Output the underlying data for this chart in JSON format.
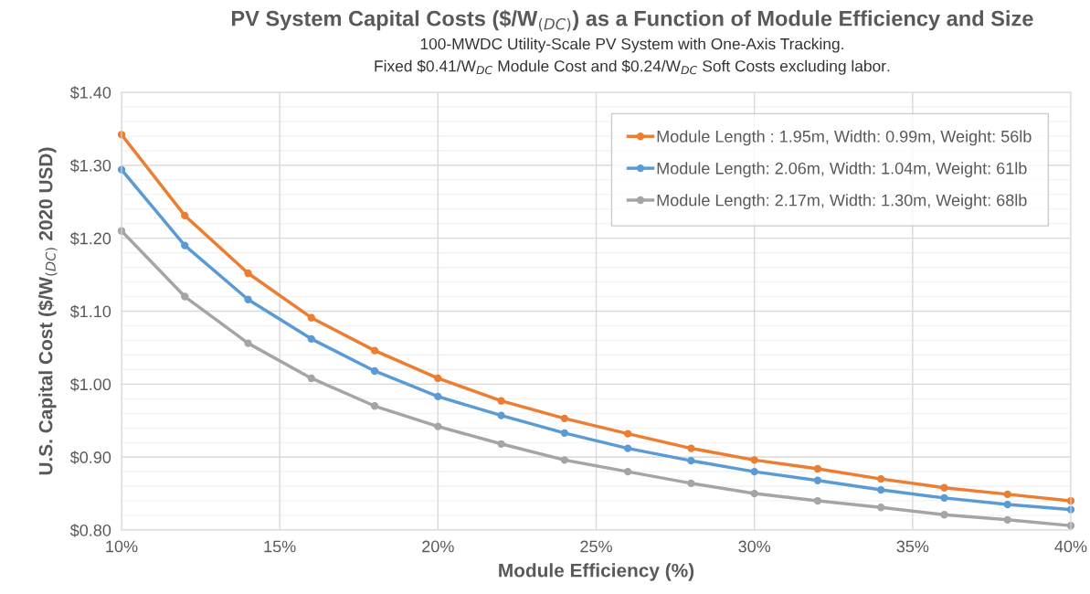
{
  "chart_data": {
    "type": "line",
    "title": "PV System Capital Costs ($/W$_{(DC)}$) as a Function of Module Efficiency and Size",
    "subtitle": "100-MWDC Utility-Scale PV System with One-Axis Tracking.\nFixed $0.41/W$_{DC}$ Module Cost and $0.24/W$_{DC}$ Soft Costs excluding labor.",
    "xlabel": "Module Efficiency (%)",
    "ylabel": "U.S. Capital Cost ($/W$_{(DC)}$ 2020 USD)",
    "x": [
      10,
      12,
      14,
      16,
      18,
      20,
      22,
      24,
      26,
      28,
      30,
      32,
      34,
      36,
      38,
      40
    ],
    "series": [
      {
        "name": "Module Length : 1.95m, Width: 0.99m, Weight: 56lb",
        "color": "#ed7d31",
        "values": [
          1.342,
          1.231,
          1.152,
          1.091,
          1.046,
          1.008,
          0.977,
          0.953,
          0.932,
          0.912,
          0.896,
          0.884,
          0.87,
          0.858,
          0.849,
          0.84
        ]
      },
      {
        "name": "Module Length: 2.06m, Width: 1.04m, Weight: 61lb",
        "color": "#5b9bd5",
        "values": [
          1.294,
          1.19,
          1.116,
          1.062,
          1.018,
          0.983,
          0.957,
          0.933,
          0.912,
          0.895,
          0.88,
          0.868,
          0.855,
          0.844,
          0.835,
          0.828
        ]
      },
      {
        "name": "Module Length: 2.17m, Width: 1.30m, Weight: 68lb",
        "color": "#a5a5a5",
        "values": [
          1.21,
          1.12,
          1.056,
          1.008,
          0.97,
          0.942,
          0.918,
          0.896,
          0.88,
          0.864,
          0.85,
          0.84,
          0.831,
          0.821,
          0.814,
          0.806
        ]
      }
    ],
    "xlim": [
      10,
      40
    ],
    "xticks": [
      {
        "value": 10,
        "label": "10%"
      },
      {
        "value": 15,
        "label": "15%"
      },
      {
        "value": 20,
        "label": "20%"
      },
      {
        "value": 25,
        "label": "25%"
      },
      {
        "value": 30,
        "label": "30%"
      },
      {
        "value": 35,
        "label": "35%"
      },
      {
        "value": 40,
        "label": "40%"
      }
    ],
    "ylim": [
      0.8,
      1.4
    ],
    "yticks": [
      {
        "value": 0.8,
        "label": "$0.80"
      },
      {
        "value": 0.9,
        "label": "$0.90"
      },
      {
        "value": 1.0,
        "label": "$1.00"
      },
      {
        "value": 1.1,
        "label": "$1.10"
      },
      {
        "value": 1.2,
        "label": "$1.20"
      },
      {
        "value": 1.3,
        "label": "$1.30"
      },
      {
        "value": 1.4,
        "label": "$1.40"
      }
    ],
    "grid": true,
    "legend": "top right",
    "marker": "circle",
    "line_style": "solid"
  }
}
